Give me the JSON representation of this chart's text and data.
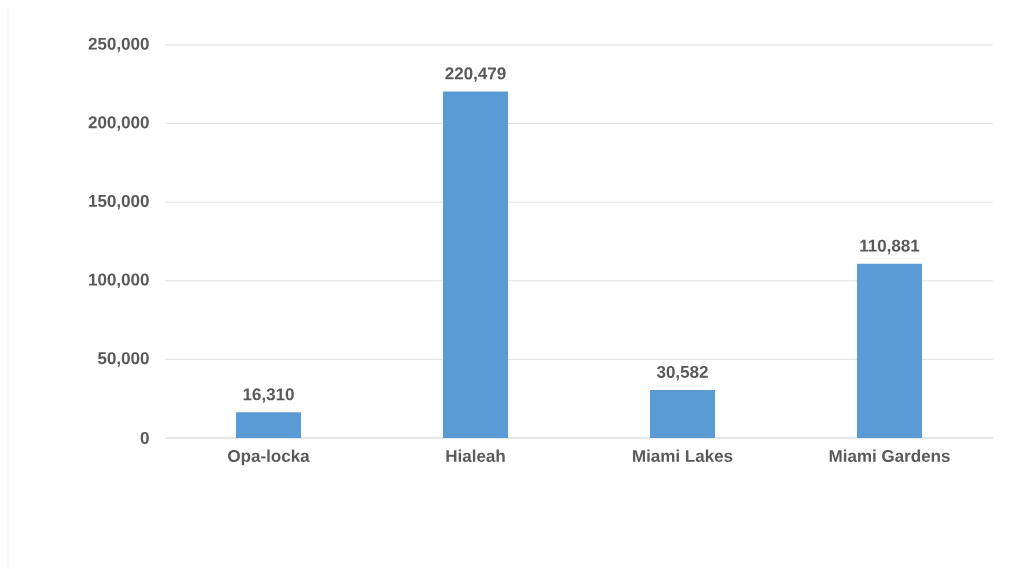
{
  "chart_data": {
    "type": "bar",
    "categories": [
      "Opa-locka",
      "Hialeah",
      "Miami Lakes",
      "Miami Gardens"
    ],
    "values": [
      16310,
      220479,
      30582,
      110881
    ],
    "value_labels": [
      "16,310",
      "220,479",
      "30,582",
      "110,881"
    ],
    "color": "#5b9bd5",
    "ylim": [
      0,
      250000
    ],
    "yticks": [
      0,
      {
        "value": 50000,
        "label": "50,000"
      },
      {
        "value": 100000,
        "label": "100,000"
      },
      {
        "value": 150000,
        "label": "150,000"
      },
      {
        "value": 200000,
        "label": "200,000"
      },
      {
        "value": 250000,
        "label": "250,000"
      }
    ],
    "grid": "y"
  }
}
